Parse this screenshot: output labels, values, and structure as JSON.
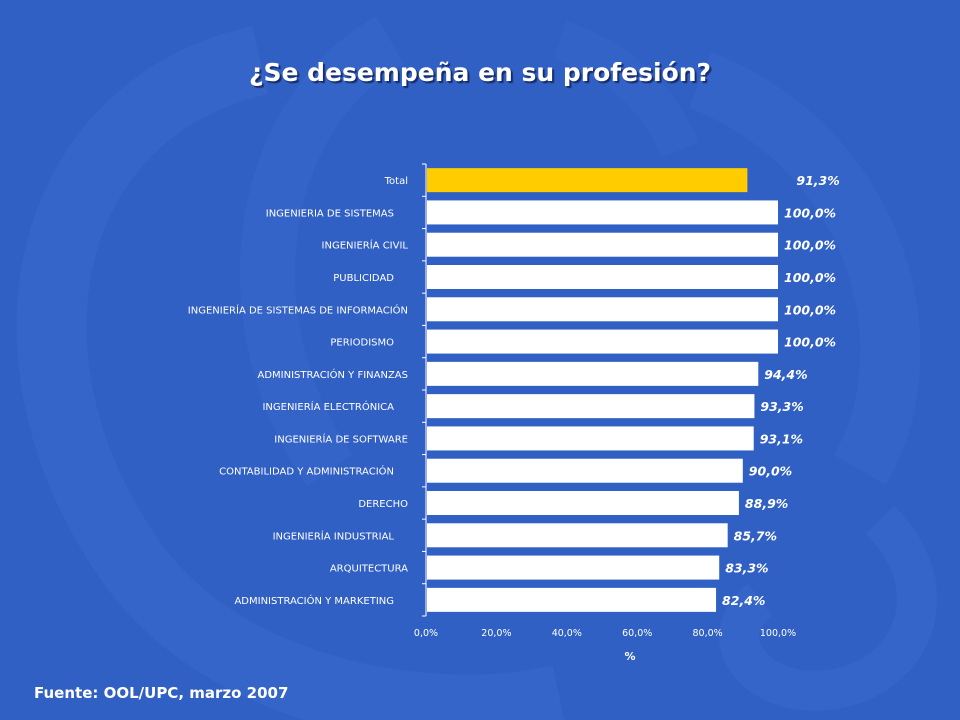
{
  "slide": {
    "title": "¿Se desempeña en su profesión?",
    "source": "Fuente: OOL/UPC, marzo 2007"
  },
  "colors": {
    "background": "#3160c4",
    "decoration": "#3a6ccf",
    "bar_default": "#ffffff",
    "bar_highlight": "#ffcc00",
    "text": "#ffffff"
  },
  "chart_data": {
    "type": "bar",
    "orientation": "horizontal",
    "title": "¿Se desempeña en su profesión?",
    "xlabel": "%",
    "ylabel": "",
    "xlim": [
      0,
      100
    ],
    "x_ticks": [
      "0,0%",
      "20,0%",
      "40,0%",
      "60,0%",
      "80,0%",
      "100,0%"
    ],
    "highlight_category": "Total",
    "categories": [
      "Total",
      "INGENIERIA DE SISTEMAS",
      "INGENIERÍA CIVIL",
      "PUBLICIDAD",
      "INGENIERÍA DE SISTEMAS DE INFORMACIÓN",
      "PERIODISMO",
      "ADMINISTRACIÓN Y FINANZAS",
      "INGENIERÍA ELECTRÓNICA",
      "INGENIERÍA DE SOFTWARE",
      "CONTABILIDAD Y ADMINISTRACIÓN",
      "DERECHO",
      "INGENIERÍA INDUSTRIAL",
      "ARQUITECTURA",
      "ADMINISTRACIÓN Y MARKETING"
    ],
    "values": [
      91.3,
      100.0,
      100.0,
      100.0,
      100.0,
      100.0,
      94.4,
      93.3,
      93.1,
      90.0,
      88.9,
      85.7,
      83.3,
      82.4
    ],
    "value_labels": [
      "91,3%",
      "100,0%",
      "100,0%",
      "100,0%",
      "100,0%",
      "100,0%",
      "94,4%",
      "93,3%",
      "93,1%",
      "90,0%",
      "88,9%",
      "85,7%",
      "83,3%",
      "82,4%"
    ],
    "legend": "none",
    "grid": false
  }
}
